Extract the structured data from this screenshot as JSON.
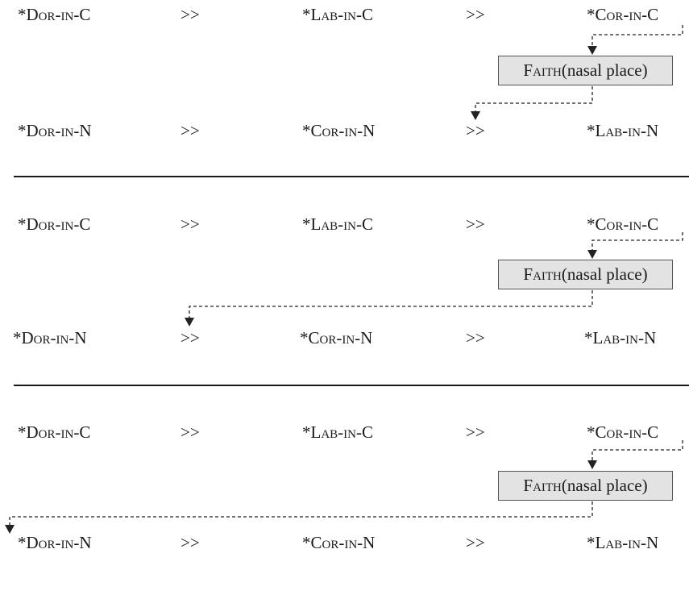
{
  "constraints": {
    "dor_in_c": {
      "star": "*",
      "sc": "Dor-in-",
      "tail": "C"
    },
    "lab_in_c": {
      "star": "*",
      "sc": "Lab-in-",
      "tail": "C"
    },
    "cor_in_c": {
      "star": "*",
      "sc": "Cor-in-",
      "tail": "C"
    },
    "dor_in_n": {
      "star": "*",
      "sc": "Dor-in-",
      "tail": "N"
    },
    "cor_in_n": {
      "star": "*",
      "sc": "Cor-in-",
      "tail": "N"
    },
    "lab_in_n": {
      "star": "*",
      "sc": "Lab-in-",
      "tail": "N"
    }
  },
  "dominance": ">>",
  "faith": {
    "sc": "Faith",
    "rest": "(nasal place)"
  }
}
